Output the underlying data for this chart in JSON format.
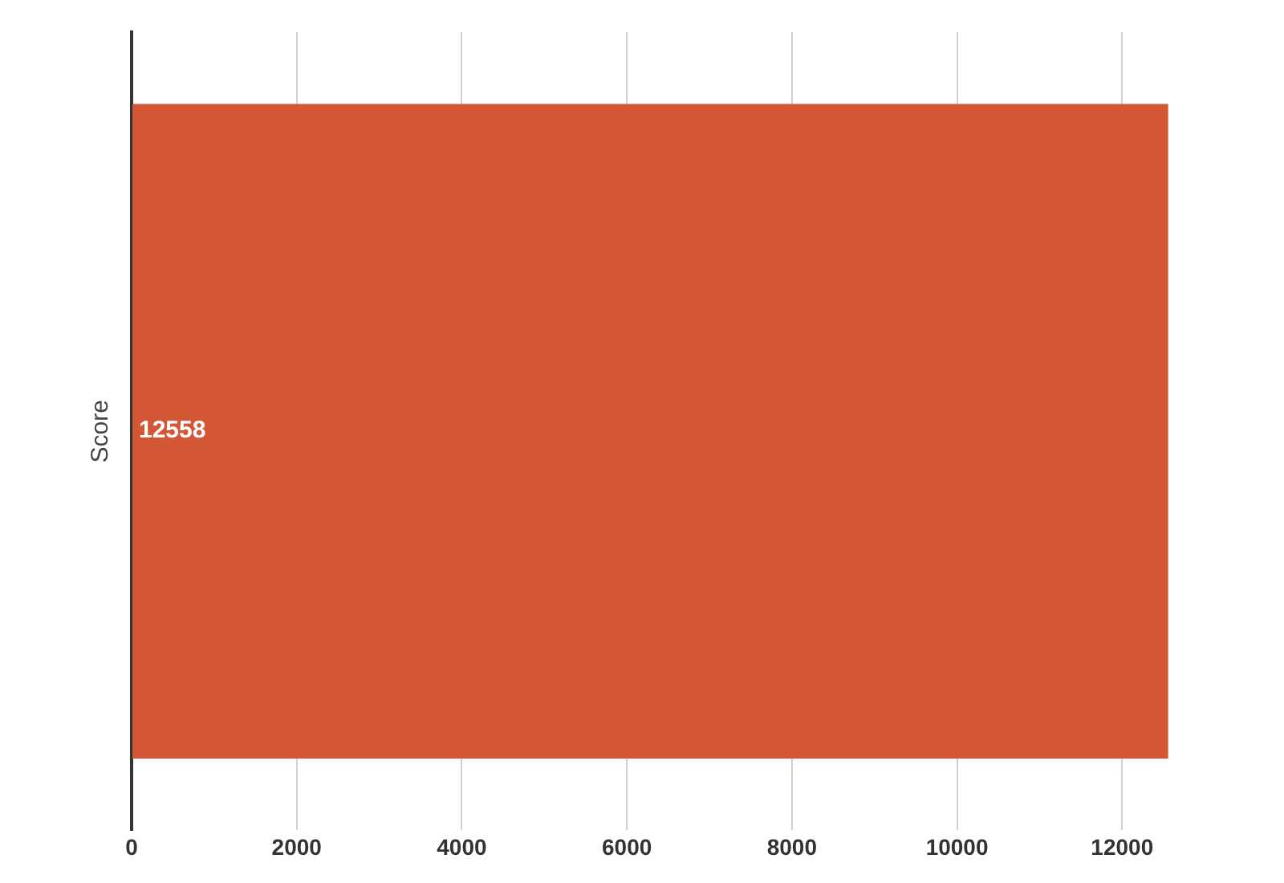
{
  "chart_data": {
    "type": "bar",
    "orientation": "horizontal",
    "ylabel": "Score",
    "categories": [
      null
    ],
    "values": [
      12558
    ],
    "color": "#d45735",
    "xlim": [
      0,
      12600
    ],
    "xticks": [
      0,
      2000,
      4000,
      6000,
      8000,
      10000,
      12000
    ],
    "grid": "x",
    "data_labels": true
  }
}
